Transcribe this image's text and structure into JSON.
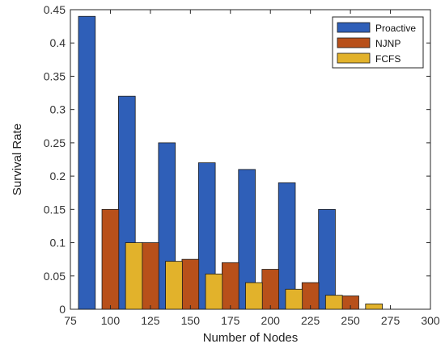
{
  "chart_data": {
    "type": "bar",
    "xlabel": "Number of Nodes",
    "ylabel": "Survival Rate",
    "xlim": [
      75,
      300
    ],
    "ylim": [
      0,
      0.45
    ],
    "xticks": [
      "75",
      "100",
      "125",
      "150",
      "175",
      "200",
      "225",
      "250",
      "275",
      "300"
    ],
    "yticks": [
      "0",
      "0.05",
      "0.1",
      "0.15",
      "0.2",
      "0.25",
      "0.3",
      "0.35",
      "0.4",
      "0.45"
    ],
    "categories": [
      100,
      125,
      150,
      175,
      200,
      225,
      250
    ],
    "series": [
      {
        "name": "Proactive",
        "color": "#2f5fb8",
        "values": [
          0.44,
          0.32,
          0.25,
          0.22,
          0.21,
          0.19,
          0.15
        ]
      },
      {
        "name": "NJNP",
        "color": "#b8501a",
        "values": [
          0.15,
          0.1,
          0.075,
          0.07,
          0.06,
          0.04,
          0.02
        ]
      },
      {
        "name": "FCFS",
        "color": "#e2b22b",
        "values": [
          0.1,
          0.072,
          0.053,
          0.04,
          0.03,
          0.021,
          0.008
        ]
      }
    ],
    "grid": false,
    "legend_position": "top-right"
  }
}
